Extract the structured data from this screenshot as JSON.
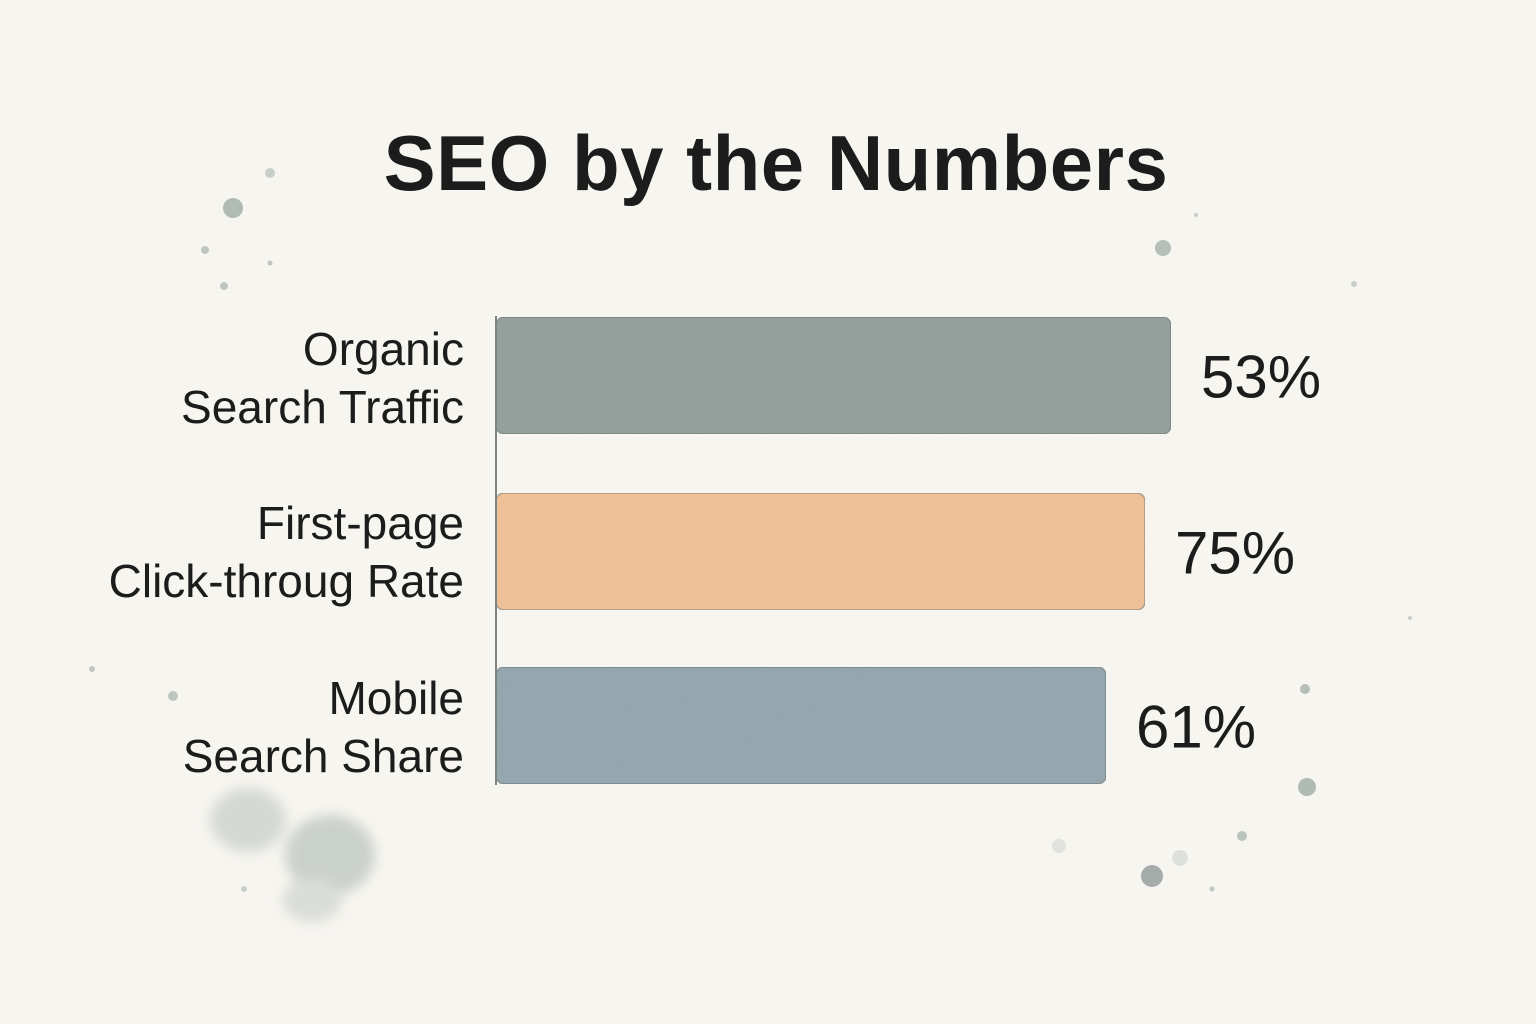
{
  "chart_data": {
    "type": "bar",
    "orientation": "horizontal",
    "title": "SEO by the Numbers",
    "xlabel": "",
    "ylabel": "",
    "grid": false,
    "categories": [
      [
        "Organic",
        "Search Traffic"
      ],
      [
        "First-page",
        "Click-throug Rate"
      ],
      [
        "Mobile",
        "Search Share"
      ]
    ],
    "values": [
      53,
      75,
      61
    ],
    "value_labels": [
      "53%",
      "75%",
      "61%"
    ],
    "colors": [
      "#98a39f",
      "#f2c39a",
      "#98a9b1"
    ]
  }
}
